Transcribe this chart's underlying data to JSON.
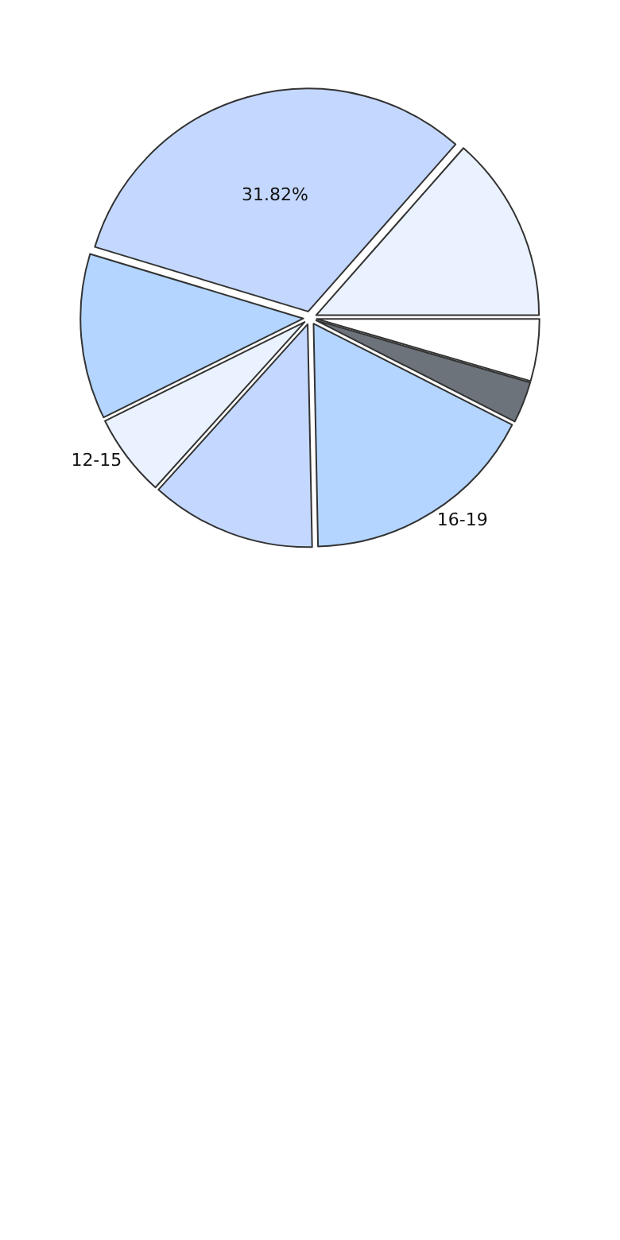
{
  "chart_data": {
    "type": "pie",
    "categories": [
      null,
      null,
      null,
      null,
      "12-15",
      null,
      "16-19",
      null
    ],
    "values": [
      4.5,
      13.5,
      31.82,
      12,
      6,
      12,
      17.18,
      3
    ],
    "colors": [
      "#ffffff",
      "#eaf2ff",
      "#c4d8ff",
      "#b3d5ff",
      "#eaf2ff",
      "#c4d8ff",
      "#b3d5ff",
      "#6c737a"
    ],
    "value_labels": [
      null,
      null,
      "31.82%",
      null,
      null,
      null,
      null,
      null
    ],
    "legend": false
  }
}
